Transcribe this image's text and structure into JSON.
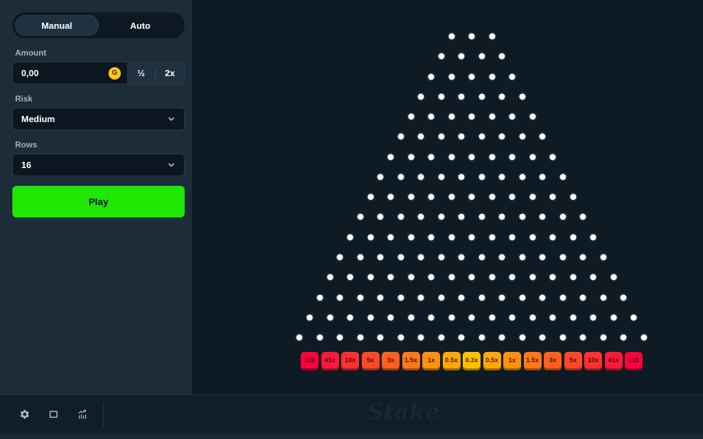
{
  "sidebar": {
    "mode_tabs": [
      {
        "label": "Manual",
        "active": true
      },
      {
        "label": "Auto",
        "active": false
      }
    ],
    "amount": {
      "label": "Amount",
      "value": "0,00",
      "currency_icon": "gold-coin",
      "coin_letter": "G",
      "half_button": "½",
      "double_button": "2x"
    },
    "risk": {
      "label": "Risk",
      "value": "Medium"
    },
    "rows": {
      "label": "Rows",
      "value": "16"
    },
    "play_button": "Play"
  },
  "board": {
    "rows": 16,
    "peg_color": "#ffffff",
    "buckets": [
      {
        "label": "110",
        "bg": "#ff003f",
        "edge": "#9e0027"
      },
      {
        "label": "41x",
        "bg": "#ff1837",
        "edge": "#9e0f22"
      },
      {
        "label": "10x",
        "bg": "#ff302f",
        "edge": "#9e1e1d"
      },
      {
        "label": "5x",
        "bg": "#ff4827",
        "edge": "#9e2c18"
      },
      {
        "label": "3x",
        "bg": "#ff601f",
        "edge": "#9e3b13"
      },
      {
        "label": "1.5x",
        "bg": "#ff7818",
        "edge": "#9e4a0f"
      },
      {
        "label": "1x",
        "bg": "#ff9010",
        "edge": "#9e590a"
      },
      {
        "label": "0.5x",
        "bg": "#ffa808",
        "edge": "#9e6805"
      },
      {
        "label": "0.3x",
        "bg": "#ffc000",
        "edge": "#9e7700"
      },
      {
        "label": "0.5x",
        "bg": "#ffa808",
        "edge": "#9e6805"
      },
      {
        "label": "1x",
        "bg": "#ff9010",
        "edge": "#9e590a"
      },
      {
        "label": "1.5x",
        "bg": "#ff7818",
        "edge": "#9e4a0f"
      },
      {
        "label": "3x",
        "bg": "#ff601f",
        "edge": "#9e3b13"
      },
      {
        "label": "5x",
        "bg": "#ff4827",
        "edge": "#9e2c18"
      },
      {
        "label": "10x",
        "bg": "#ff302f",
        "edge": "#9e1e1d"
      },
      {
        "label": "41x",
        "bg": "#ff1837",
        "edge": "#9e0f22"
      },
      {
        "label": "110",
        "bg": "#ff003f",
        "edge": "#9e0027"
      }
    ]
  },
  "footer": {
    "icons": [
      "settings-gear",
      "theatre-mode",
      "live-stats"
    ],
    "watermark": "Stake"
  },
  "colors": {
    "sidebar_bg": "#1c2c38",
    "game_bg": "#0e1a24",
    "play_green": "#1fe701",
    "coin_gold": "#ffc31c",
    "label_text": "#a2b2c3"
  }
}
